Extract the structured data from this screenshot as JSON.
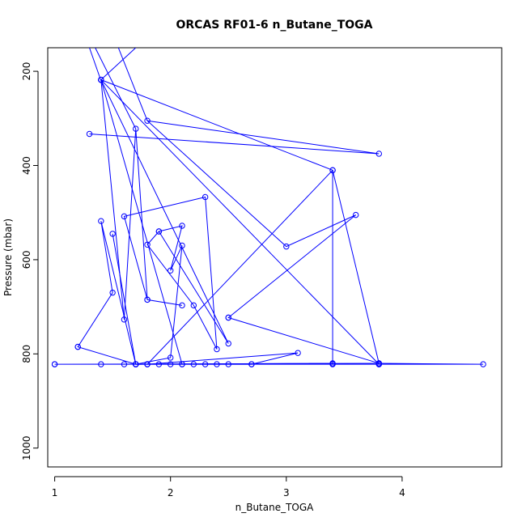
{
  "chart_data": {
    "type": "line",
    "title": "ORCAS RF01-6 n_Butane_TOGA",
    "xlabel": "n_Butane_TOGA",
    "ylabel": "Pressure (mbar)",
    "xlim": [
      0.94,
      4.86
    ],
    "ylim": [
      1040,
      150
    ],
    "y_reversed": true,
    "x_ticks": [
      1,
      2,
      3,
      4
    ],
    "y_ticks": [
      200,
      400,
      600,
      800,
      1000
    ],
    "grid": false,
    "legend": "none",
    "series_color": "#0000ff",
    "off_plot_lines": [
      {
        "from": [
          1.3,
          150
        ],
        "to": [
          1.4,
          220
        ]
      },
      {
        "from": [
          1.35,
          150
        ],
        "to": [
          1.7,
          322
        ]
      },
      {
        "from": [
          1.55,
          150
        ],
        "to": [
          1.8,
          305
        ]
      },
      {
        "from": [
          1.7,
          150
        ],
        "to": [
          1.4,
          218
        ]
      }
    ],
    "series": [
      {
        "x": [
          1.0,
          1.4,
          1.6,
          1.7,
          1.8,
          1.9,
          2.0,
          2.1,
          2.2,
          2.3,
          2.4,
          2.5,
          2.7,
          3.4,
          3.8,
          4.7,
          3.8,
          1.0
        ],
        "y": [
          822,
          822,
          822,
          822,
          822,
          822,
          822,
          822,
          822,
          822,
          822,
          822,
          822,
          822,
          822,
          822,
          820,
          822
        ]
      },
      {
        "x": [
          1.7,
          2.0,
          2.1,
          2.0,
          2.1,
          1.9,
          1.8,
          2.2,
          2.4,
          2.3,
          1.6,
          1.8,
          2.1,
          1.8,
          1.7,
          1.6,
          1.4,
          2.5,
          1.9
        ],
        "y": [
          822,
          808,
          570,
          623,
          528,
          540,
          568,
          697,
          790,
          467,
          508,
          685,
          697,
          685,
          322,
          727,
          218,
          778,
          540
        ]
      },
      {
        "x": [
          1.3,
          3.8,
          1.8,
          3.0,
          3.6,
          2.5,
          2.5,
          3.8,
          3.4,
          3.4,
          1.7,
          1.5,
          1.7
        ],
        "y": [
          333,
          375,
          305,
          572,
          505,
          723,
          723,
          820,
          410,
          820,
          822,
          545,
          822
        ]
      },
      {
        "x": [
          1.7,
          1.4,
          1.5,
          1.2,
          1.7,
          1.8,
          3.1,
          2.7,
          1.7,
          1.2
        ],
        "y": [
          822,
          518,
          670,
          785,
          822,
          822,
          798,
          822,
          822,
          785
        ]
      },
      {
        "x": [
          1.4,
          2.1,
          1.4,
          3.8,
          1.4,
          3.4,
          1.8
        ],
        "y": [
          218,
          822,
          218,
          822,
          218,
          410,
          822
        ]
      }
    ]
  }
}
